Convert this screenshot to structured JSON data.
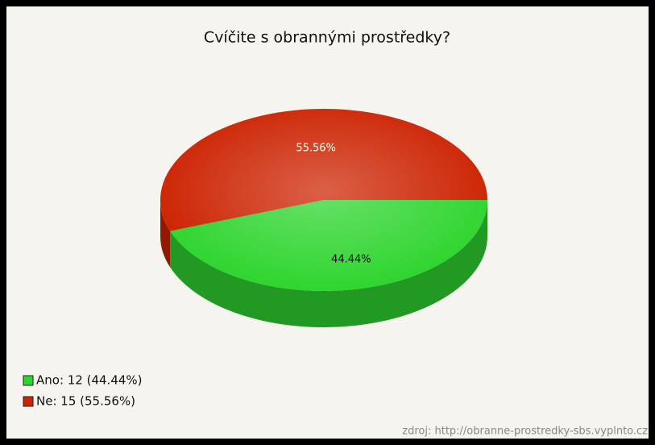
{
  "chart_data": {
    "type": "pie",
    "title": "Cvíčite s obrannými prostředky?",
    "categories": [
      "Ano",
      "Ne"
    ],
    "values": [
      44.44,
      55.56
    ],
    "value_labels": [
      "44.44%",
      "55.56%"
    ],
    "colors": [
      "#2fd52f",
      "#cc2200"
    ],
    "legend": [
      "Ano: 12 (44.44%)",
      "Ne: 15 (55.56%)"
    ],
    "source": "zdroj: http://obranne-prostredky-sbs.vyplnto.cz"
  }
}
